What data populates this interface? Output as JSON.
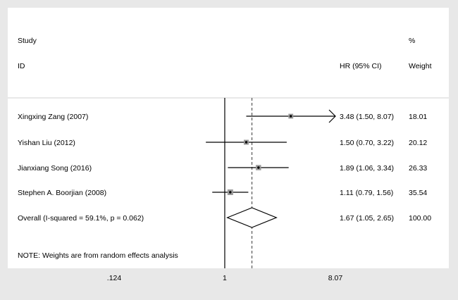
{
  "chart_data": {
    "type": "forest",
    "headers": {
      "study_top": "Study",
      "study_bottom": "ID",
      "hr": "HR (95% CI)",
      "weight_top": "%",
      "weight_bottom": "Weight"
    },
    "studies": [
      {
        "label": "Xingxing Zang (2007)",
        "hr": 3.48,
        "lower": 1.5,
        "upper": 8.07,
        "ci_text": "3.48 (1.50, 8.07)",
        "weight": 18.01,
        "weight_text": "18.01",
        "truncated_upper": true
      },
      {
        "label": "Yishan Liu  (2012)",
        "hr": 1.5,
        "lower": 0.7,
        "upper": 3.22,
        "ci_text": "1.50 (0.70, 3.22)",
        "weight": 20.12,
        "weight_text": "20.12",
        "truncated_upper": false
      },
      {
        "label": "Jianxiang Song (2016)",
        "hr": 1.89,
        "lower": 1.06,
        "upper": 3.34,
        "ci_text": "1.89 (1.06, 3.34)",
        "weight": 26.33,
        "weight_text": "26.33",
        "truncated_upper": false
      },
      {
        "label": "Stephen A. Boorjian (2008)",
        "hr": 1.11,
        "lower": 0.79,
        "upper": 1.56,
        "ci_text": "1.11 (0.79, 1.56)",
        "weight": 35.54,
        "weight_text": "35.54",
        "truncated_upper": false
      }
    ],
    "overall": {
      "label": "Overall  (I-squared = 59.1%, p = 0.062)",
      "hr": 1.67,
      "lower": 1.05,
      "upper": 2.65,
      "ci_text": "1.67 (1.05, 2.65)",
      "weight_text": "100.00"
    },
    "note": "NOTE: Weights are from random effects analysis",
    "x_axis": {
      "scale": "log",
      "ticks": [
        0.124,
        1,
        8.07
      ],
      "tick_labels": [
        ".124",
        "1",
        "8.07"
      ],
      "null_value": 1
    }
  }
}
